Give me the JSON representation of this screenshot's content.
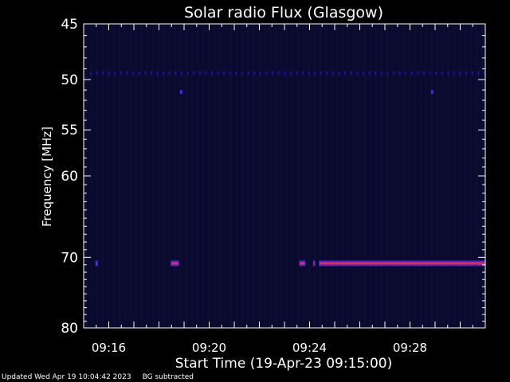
{
  "chart_data": {
    "type": "heatmap",
    "title": "Solar radio Flux (Glasgow)",
    "xlabel": "Start Time (19-Apr-23 09:15:00)",
    "ylabel": "Frequency [MHz]",
    "xlim": [
      "09:15:00",
      "09:31:00"
    ],
    "ylim": [
      45,
      80
    ],
    "y_scale": "log",
    "y_inverted": true,
    "x_ticks": [
      "09:16",
      "09:20",
      "09:24",
      "09:28"
    ],
    "y_ticks": [
      45,
      50,
      55,
      60,
      70,
      80
    ],
    "colormap": {
      "background": "#0a0a2e",
      "low": "#1414a0",
      "high": "#ff2040"
    },
    "bursts": [
      {
        "freq_mhz": 70.8,
        "start": "09:15:28",
        "end": "09:15:32",
        "intensity": "high"
      },
      {
        "freq_mhz": 70.8,
        "start": "09:18:28",
        "end": "09:18:48",
        "intensity": "high"
      },
      {
        "freq_mhz": 70.8,
        "start": "09:23:35",
        "end": "09:23:50",
        "intensity": "high"
      },
      {
        "freq_mhz": 70.8,
        "start": "09:24:08",
        "end": "09:24:10",
        "intensity": "high"
      },
      {
        "freq_mhz": 70.8,
        "start": "09:24:22",
        "end": "09:31:00",
        "intensity": "high"
      },
      {
        "freq_mhz": 51.2,
        "start": "09:18:50",
        "end": "09:18:58",
        "intensity": "low"
      },
      {
        "freq_mhz": 51.2,
        "start": "09:28:50",
        "end": "09:28:58",
        "intensity": "low"
      }
    ],
    "interference_band": {
      "freq_mhz": 49.4,
      "intensity": "low",
      "pattern": "dotted"
    }
  },
  "footer": {
    "updated": "Updated Wed Apr 19 10:04:42 2023",
    "mode": "BG subtracted"
  }
}
